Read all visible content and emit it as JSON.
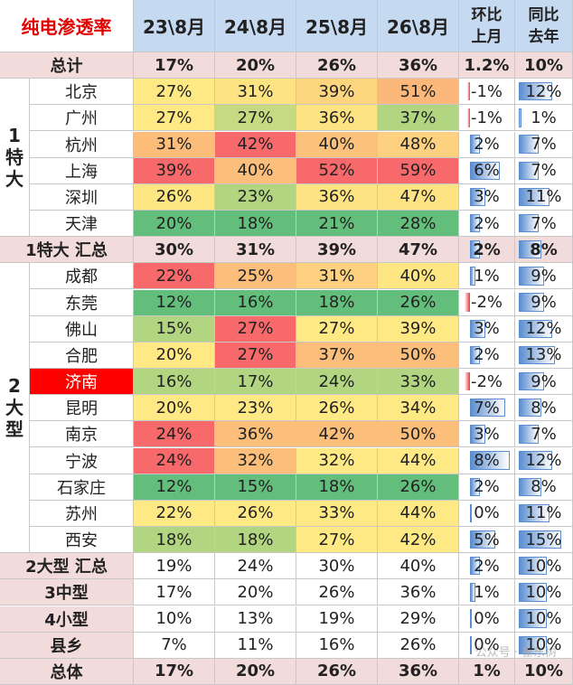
{
  "table": {
    "header": [
      "纯电渗透率",
      "23\\8月",
      "24\\8月",
      "25\\8月",
      "26\\8月",
      "环比上月",
      "同比去年"
    ],
    "groups": [
      {
        "label": "1特大",
        "from": 1,
        "to": 6
      },
      {
        "label": "2大型",
        "from": 8,
        "to": 18
      }
    ],
    "rows": [
      {
        "name": "总计",
        "cells": [
          "17%",
          "20%",
          "26%",
          "36%",
          "1.2%",
          "10%"
        ]
      },
      {
        "name": "北京",
        "cells": [
          "27%",
          "31%",
          "39%",
          "51%",
          "-1%",
          "12%"
        ],
        "colors": [
          "#ffe984",
          "#fee382",
          "#fdd57f",
          "#fcb87a"
        ]
      },
      {
        "name": "广州",
        "cells": [
          "27%",
          "27%",
          "36%",
          "37%",
          "-1%",
          "1%"
        ],
        "colors": [
          "#ffe984",
          "#c6db81",
          "#fee382",
          "#b1d580"
        ]
      },
      {
        "name": "杭州",
        "cells": [
          "31%",
          "42%",
          "40%",
          "48%",
          "2%",
          "7%"
        ],
        "colors": [
          "#fcbd7b",
          "#f8696b",
          "#fcc27c",
          "#fdd17f"
        ]
      },
      {
        "name": "上海",
        "cells": [
          "39%",
          "40%",
          "52%",
          "59%",
          "6%",
          "7%"
        ],
        "colors": [
          "#f8696b",
          "#fcbf7b",
          "#f8696b",
          "#f8696b"
        ]
      },
      {
        "name": "深圳",
        "cells": [
          "26%",
          "23%",
          "36%",
          "47%",
          "3%",
          "11%"
        ],
        "colors": [
          "#fee683",
          "#b1d580",
          "#fee382",
          "#fee383"
        ]
      },
      {
        "name": "天津",
        "cells": [
          "20%",
          "18%",
          "21%",
          "28%",
          "2%",
          "7%"
        ],
        "colors": [
          "#63be7b",
          "#63be7b",
          "#63be7b",
          "#63be7b"
        ]
      },
      {
        "name": "1特大 汇总",
        "cells": [
          "30%",
          "31%",
          "39%",
          "47%",
          "2%",
          "8%"
        ]
      },
      {
        "name": "成都",
        "cells": [
          "22%",
          "25%",
          "31%",
          "40%",
          "1%",
          "9%"
        ],
        "colors": [
          "#f8696b",
          "#fcbf7b",
          "#fdd17f",
          "#fee683"
        ]
      },
      {
        "name": "东莞",
        "cells": [
          "12%",
          "16%",
          "18%",
          "26%",
          "-2%",
          "9%"
        ],
        "colors": [
          "#63be7b",
          "#63be7b",
          "#63be7b",
          "#63be7b"
        ]
      },
      {
        "name": "佛山",
        "cells": [
          "15%",
          "27%",
          "27%",
          "39%",
          "3%",
          "12%"
        ],
        "colors": [
          "#b1d580",
          "#f8696b",
          "#ffe984",
          "#ffe984"
        ]
      },
      {
        "name": "合肥",
        "cells": [
          "20%",
          "27%",
          "37%",
          "50%",
          "2%",
          "13%"
        ],
        "colors": [
          "#ffe984",
          "#f8696b",
          "#fcbf7b",
          "#fcbf7b"
        ]
      },
      {
        "name": "济南",
        "cells": [
          "16%",
          "17%",
          "24%",
          "33%",
          "-2%",
          "9%"
        ],
        "colors": [
          "#b1d580",
          "#b1d580",
          "#b1d580",
          "#b1d580"
        ]
      },
      {
        "name": "昆明",
        "cells": [
          "20%",
          "23%",
          "26%",
          "34%",
          "7%",
          "8%"
        ],
        "colors": [
          "#ffe984",
          "#ffe984",
          "#ffe984",
          "#ffe984"
        ]
      },
      {
        "name": "南京",
        "cells": [
          "24%",
          "36%",
          "42%",
          "50%",
          "3%",
          "7%"
        ],
        "colors": [
          "#f8696b",
          "#fcbf7b",
          "#fcbf7b",
          "#fcbf7b"
        ]
      },
      {
        "name": "宁波",
        "cells": [
          "24%",
          "32%",
          "32%",
          "44%",
          "8%",
          "12%"
        ],
        "colors": [
          "#f8696b",
          "#fcbf7b",
          "#ffe984",
          "#ffe984"
        ]
      },
      {
        "name": "石家庄",
        "cells": [
          "12%",
          "15%",
          "18%",
          "26%",
          "2%",
          "8%"
        ],
        "colors": [
          "#63be7b",
          "#63be7b",
          "#63be7b",
          "#63be7b"
        ]
      },
      {
        "name": "苏州",
        "cells": [
          "22%",
          "26%",
          "33%",
          "44%",
          "0%",
          "11%"
        ],
        "colors": [
          "#ffe984",
          "#ffe984",
          "#ffe984",
          "#ffe984"
        ]
      },
      {
        "name": "西安",
        "cells": [
          "18%",
          "18%",
          "27%",
          "42%",
          "5%",
          "15%"
        ],
        "colors": [
          "#b1d580",
          "#b1d580",
          "#ffe984",
          "#ffe984"
        ]
      },
      {
        "name": "2大型 汇总",
        "cells": [
          "19%",
          "24%",
          "30%",
          "40%",
          "2%",
          "10%"
        ]
      },
      {
        "name": "3中型",
        "cells": [
          "17%",
          "20%",
          "26%",
          "36%",
          "1%",
          "10%"
        ]
      },
      {
        "name": "4小型",
        "cells": [
          "10%",
          "13%",
          "19%",
          "29%",
          "0%",
          "10%"
        ]
      },
      {
        "name": "县乡",
        "cells": [
          "7%",
          "11%",
          "16%",
          "26%",
          "0%",
          "10%"
        ]
      },
      {
        "name": "总体",
        "cells": [
          "17%",
          "20%",
          "26%",
          "36%",
          "1%",
          "10%"
        ]
      }
    ],
    "highlight": {
      "row": 12,
      "color": "#ff0000"
    },
    "watermark": "公众号 · 崔东树"
  }
}
